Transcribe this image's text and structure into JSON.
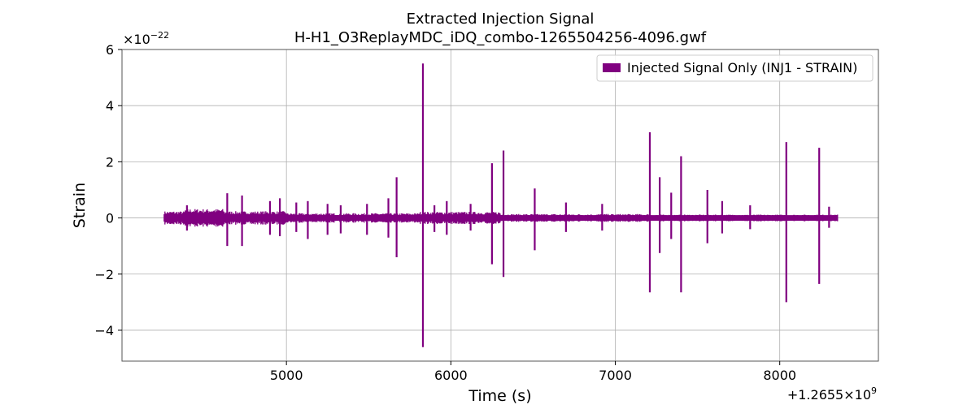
{
  "chart_data": {
    "type": "line",
    "title": "Extracted Injection Signal",
    "subtitle": "H-H1_O3ReplayMDC_iDQ_combo-1265504256-4096.gwf",
    "xlabel": "Time (s)",
    "ylabel": "Strain",
    "x_offset_label": "+1.2655×10",
    "x_offset_exponent": "9",
    "y_scale_label": "×10",
    "y_scale_exponent": "−22",
    "xlim": [
      4000,
      8600
    ],
    "ylim": [
      -5.1,
      6.0
    ],
    "xticks": [
      5000,
      6000,
      7000,
      8000
    ],
    "xtick_labels": [
      "5000",
      "6000",
      "7000",
      "8000"
    ],
    "yticks": [
      -4,
      -2,
      0,
      2,
      4,
      6
    ],
    "ytick_labels": [
      "−4",
      "−2",
      "0",
      "2",
      "4",
      "6"
    ],
    "grid": true,
    "legend_position": "top-right",
    "series": [
      {
        "name": "Injected Signal Only (INJ1 - STRAIN)",
        "color": "#800080",
        "x_range": [
          4256,
          8352
        ],
        "spikes": [
          {
            "x": 4395,
            "max": 0.45,
            "min": -0.45
          },
          {
            "x": 4640,
            "max": 0.88,
            "min": -1.0
          },
          {
            "x": 4730,
            "max": 0.8,
            "min": -1.0
          },
          {
            "x": 4900,
            "max": 0.6,
            "min": -0.6
          },
          {
            "x": 4960,
            "max": 0.7,
            "min": -0.65
          },
          {
            "x": 5060,
            "max": 0.55,
            "min": -0.5
          },
          {
            "x": 5130,
            "max": 0.6,
            "min": -0.75
          },
          {
            "x": 5250,
            "max": 0.5,
            "min": -0.6
          },
          {
            "x": 5330,
            "max": 0.45,
            "min": -0.55
          },
          {
            "x": 5490,
            "max": 0.5,
            "min": -0.6
          },
          {
            "x": 5620,
            "max": 0.7,
            "min": -0.7
          },
          {
            "x": 5670,
            "max": 1.45,
            "min": -1.4
          },
          {
            "x": 5830,
            "max": 5.5,
            "min": -4.6
          },
          {
            "x": 5900,
            "max": 0.45,
            "min": -0.5
          },
          {
            "x": 5975,
            "max": 0.6,
            "min": -0.6
          },
          {
            "x": 6120,
            "max": 0.5,
            "min": -0.45
          },
          {
            "x": 6250,
            "max": 1.95,
            "min": -1.65
          },
          {
            "x": 6320,
            "max": 2.4,
            "min": -2.1
          },
          {
            "x": 6510,
            "max": 1.05,
            "min": -1.15
          },
          {
            "x": 6700,
            "max": 0.55,
            "min": -0.5
          },
          {
            "x": 6920,
            "max": 0.5,
            "min": -0.45
          },
          {
            "x": 7210,
            "max": 3.05,
            "min": -2.65
          },
          {
            "x": 7270,
            "max": 1.45,
            "min": -1.25
          },
          {
            "x": 7340,
            "max": 0.9,
            "min": -0.75
          },
          {
            "x": 7400,
            "max": 2.2,
            "min": -2.65
          },
          {
            "x": 7560,
            "max": 1.0,
            "min": -0.9
          },
          {
            "x": 7650,
            "max": 0.6,
            "min": -0.55
          },
          {
            "x": 7820,
            "max": 0.45,
            "min": -0.4
          },
          {
            "x": 8040,
            "max": 2.7,
            "min": -3.0
          },
          {
            "x": 8240,
            "max": 2.5,
            "min": -2.35
          },
          {
            "x": 8300,
            "max": 0.4,
            "min": -0.35
          }
        ]
      }
    ]
  }
}
